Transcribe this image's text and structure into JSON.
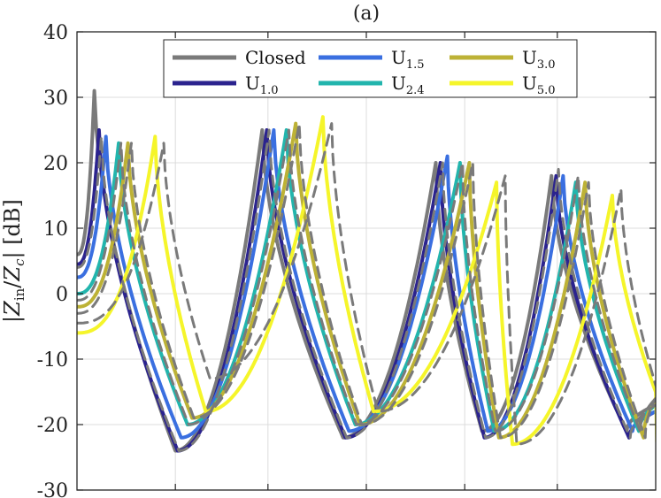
{
  "chart_data": {
    "type": "line",
    "title": "(a)",
    "xlabel": "",
    "ylabel": "|Z_in/Z_c| [dB]",
    "ylabel_parts": {
      "open": "|",
      "z": "Z",
      "in": "in",
      "slash": "/",
      "zc": "Z",
      "c": "c",
      "close": "| [dB]"
    },
    "ylim": [
      -30,
      40
    ],
    "yticks": [
      40,
      30,
      20,
      10,
      0,
      -10,
      -20,
      -30
    ],
    "ytick_labels": [
      "40",
      "30",
      "20",
      "10",
      "0",
      "-10",
      "-20",
      "-30"
    ],
    "xlim": [
      0,
      100
    ],
    "xticks": [
      17,
      33,
      50,
      67,
      83
    ],
    "grid": true,
    "legend_position": "top",
    "legend_entries": [
      {
        "main": "Closed",
        "sub": "",
        "color": "#7a7a7a"
      },
      {
        "main": "U",
        "sub": "1.5",
        "color": "#3a6fe0"
      },
      {
        "main": "U",
        "sub": "3.0",
        "color": "#bdb236"
      },
      {
        "main": "U",
        "sub": "1.0",
        "color": "#2b238e"
      },
      {
        "main": "U",
        "sub": "2.4",
        "color": "#22b5ad"
      },
      {
        "main": "U",
        "sub": "5.0",
        "color": "#f5f52a"
      }
    ],
    "dashed_color": "#7a7a7a",
    "series": [
      {
        "name": "Closed",
        "color": "#7a7a7a",
        "style": "solid",
        "shift": 0,
        "peaks": [
          31,
          25,
          20,
          18
        ],
        "troughs": [
          -24,
          -22,
          -21,
          -21
        ],
        "start": 6,
        "end": -17
      },
      {
        "name": "U1.0",
        "color": "#2b238e",
        "style": "solid",
        "shift": 0.8,
        "peaks": [
          25,
          25,
          20,
          18
        ],
        "troughs": [
          -24,
          -22,
          -22,
          -22
        ],
        "start": 4.5,
        "end": -18
      },
      {
        "name": "U1.5",
        "color": "#3a6fe0",
        "style": "solid",
        "shift": 2,
        "peaks": [
          24,
          25,
          21,
          18
        ],
        "troughs": [
          -22,
          -21,
          -21,
          -21
        ],
        "start": 2.5,
        "end": -18
      },
      {
        "name": "U2.4",
        "color": "#22b5ad",
        "style": "solid",
        "shift": 4.2,
        "peaks": [
          23,
          25,
          20,
          17
        ],
        "troughs": [
          -20,
          -20,
          -21,
          -21
        ],
        "start": 0,
        "end": -17
      },
      {
        "name": "U3.0",
        "color": "#bdb236",
        "style": "solid",
        "shift": 5.8,
        "peaks": [
          23,
          26,
          20,
          17
        ],
        "troughs": [
          -19,
          -20,
          -22,
          -22
        ],
        "start": -2,
        "end": -16
      },
      {
        "name": "U5.0",
        "color": "#f5f52a",
        "style": "solid",
        "shift": 10.5,
        "peaks": [
          24,
          27,
          17,
          15
        ],
        "troughs": [
          -18,
          -18,
          -23,
          -23
        ],
        "start": -6,
        "end": -15
      },
      {
        "name": "U1.0 (ref)",
        "color": "#7a7a7a",
        "style": "dashed",
        "shift": 1.2,
        "peaks": [
          24,
          25,
          20,
          19
        ],
        "troughs": [
          -24,
          -22,
          -22,
          -22
        ],
        "start": 4,
        "end": -17
      },
      {
        "name": "U2.4 (ref)",
        "color": "#7a7a7a",
        "style": "dashed",
        "shift": 4.6,
        "peaks": [
          23,
          25,
          20,
          18
        ],
        "troughs": [
          -20,
          -20,
          -21,
          -21
        ],
        "start": -1,
        "end": -16
      },
      {
        "name": "U3.0 (ref)",
        "color": "#7a7a7a",
        "style": "dashed",
        "shift": 6.4,
        "peaks": [
          23,
          26,
          20,
          17
        ],
        "troughs": [
          -19,
          -20,
          -22,
          -22
        ],
        "start": -3,
        "end": -16
      },
      {
        "name": "U5.0 (ref)",
        "color": "#7a7a7a",
        "style": "dashed",
        "shift": 12,
        "peaks": [
          23,
          26,
          18,
          16
        ],
        "troughs": [
          -13,
          -18,
          -23,
          -24
        ],
        "start": -4.5,
        "end": -14
      }
    ],
    "base_peak_x": [
      3,
      32,
      62,
      82
    ],
    "base_trough_x": [
      17,
      46,
      70,
      95
    ]
  }
}
